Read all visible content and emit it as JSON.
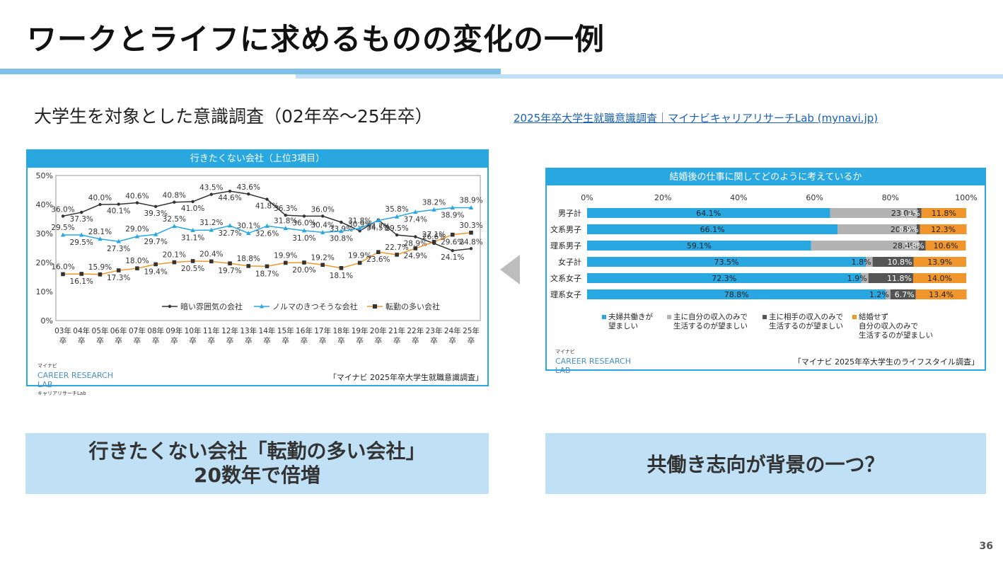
{
  "slide": {
    "title": "ワークとライフに求めるものの変化の一例",
    "subtitle": "大学生を対象とした意識調査（02年卒〜25年卒）",
    "source_link": "2025年卒大学生就職意識調査｜マイナビキャリアリサーチLab (mynavi.jp)",
    "callout_left_line1": "行きたくない会社「転勤の多い会社」",
    "callout_left_line2": "20数年で倍増",
    "callout_right": "共働き志向が背景の一つ？",
    "page_number": "36",
    "accent_color": "#29a7e1",
    "bar_color": "#7fc0e8",
    "callout_color": "#bfe0f5"
  },
  "logo": {
    "brand": "マイナビ",
    "line1": "CAREER RESEARCH",
    "line2": "LAB",
    "tagline": "キャリアリサーチLab"
  },
  "chart_data": [
    {
      "type": "line",
      "title": "行きたくない会社（上位3項目）",
      "source": "「マイナビ 2025年卒大学生就職意識調査」",
      "ylim": [
        0,
        50
      ],
      "yticks": [
        "0%",
        "10%",
        "20%",
        "30%",
        "40%",
        "50%"
      ],
      "categories": [
        "03年卒",
        "04年卒",
        "05年卒",
        "06年卒",
        "07年卒",
        "08年卒",
        "09年卒",
        "10年卒",
        "11年卒",
        "12年卒",
        "13年卒",
        "14年卒",
        "15年卒",
        "16年卒",
        "17年卒",
        "18年卒",
        "19年卒",
        "20年卒",
        "21年卒",
        "22年卒",
        "23年卒",
        "24年卒",
        "25年卒"
      ],
      "category_labels": [
        {
          "top": "03年",
          "bottom": "卒"
        },
        {
          "top": "04年",
          "bottom": "卒"
        },
        {
          "top": "05年",
          "bottom": "卒"
        },
        {
          "top": "06年",
          "bottom": "卒"
        },
        {
          "top": "07年",
          "bottom": "卒"
        },
        {
          "top": "08年",
          "bottom": "卒"
        },
        {
          "top": "09年",
          "bottom": "卒"
        },
        {
          "top": "10年",
          "bottom": "卒"
        },
        {
          "top": "11年",
          "bottom": "卒"
        },
        {
          "top": "12年",
          "bottom": "卒"
        },
        {
          "top": "13年",
          "bottom": "卒"
        },
        {
          "top": "14年",
          "bottom": "卒"
        },
        {
          "top": "15年",
          "bottom": "卒"
        },
        {
          "top": "16年",
          "bottom": "卒"
        },
        {
          "top": "17年",
          "bottom": "卒"
        },
        {
          "top": "18年",
          "bottom": "卒"
        },
        {
          "top": "19年",
          "bottom": "卒"
        },
        {
          "top": "20年",
          "bottom": "卒"
        },
        {
          "top": "21年",
          "bottom": "卒"
        },
        {
          "top": "22年",
          "bottom": "卒"
        },
        {
          "top": "23年",
          "bottom": "卒"
        },
        {
          "top": "24年",
          "bottom": "卒"
        },
        {
          "top": "25年",
          "bottom": "卒"
        }
      ],
      "series": [
        {
          "name": "暗い雰囲気の会社",
          "color": "#333333",
          "marker": "circle",
          "values": [
            36.0,
            37.3,
            40.0,
            40.1,
            40.6,
            39.3,
            40.8,
            41.0,
            43.5,
            44.6,
            43.6,
            41.8,
            36.3,
            36.0,
            36.0,
            33.9,
            30.9,
            34.7,
            29.5,
            28.9,
            26.6,
            24.1,
            24.8
          ]
        },
        {
          "name": "ノルマのきつそうな会社",
          "color": "#29a7e1",
          "marker": "triangle",
          "values": [
            29.5,
            29.5,
            28.1,
            27.3,
            29.0,
            29.7,
            32.5,
            31.1,
            31.2,
            32.7,
            30.1,
            32.6,
            31.8,
            31.0,
            30.4,
            30.8,
            31.8,
            34.5,
            35.8,
            37.4,
            38.2,
            38.9,
            38.9
          ]
        },
        {
          "name": "転勤の多い会社",
          "color": "#f0962d",
          "marker": "square",
          "values": [
            16.0,
            16.1,
            15.9,
            17.3,
            18.0,
            19.4,
            20.1,
            20.5,
            20.4,
            19.7,
            18.8,
            18.7,
            19.9,
            20.0,
            19.2,
            18.1,
            19.9,
            23.6,
            22.7,
            24.9,
            27.1,
            29.6,
            30.3
          ]
        }
      ],
      "legend_position": "bottom",
      "grid": false
    },
    {
      "type": "bar",
      "orientation": "horizontal-stacked",
      "title": "結婚後の仕事に関してどのように考えているか",
      "source": "「マイナビ 2025年卒大学生のライフスタイル調査」",
      "xlim": [
        0,
        100
      ],
      "xticks": [
        "0%",
        "20%",
        "40%",
        "60%",
        "80%",
        "100%"
      ],
      "categories": [
        "男子計",
        "文系男子",
        "理系男子",
        "女子計",
        "文系女子",
        "理系女子"
      ],
      "series": [
        {
          "name": "夫婦共働きが望ましい",
          "legend_lines": [
            "夫婦共働きが",
            "望ましい"
          ],
          "color": "#29a7e1",
          "values": [
            64.1,
            66.1,
            59.1,
            73.5,
            72.3,
            78.8
          ]
        },
        {
          "name": "主に自分の収入のみで生活するのが望ましい",
          "legend_lines": [
            "主に自分の収入のみで",
            "生活するのが望ましい"
          ],
          "color": "#b3b3b3",
          "values": [
            23.0,
            20.8,
            28.4,
            1.8,
            1.9,
            1.2
          ]
        },
        {
          "name": "主に相手の収入のみで生活するのが望ましい",
          "legend_lines": [
            "主に相手の収入のみで",
            "生活するのが望ましい"
          ],
          "color": "#555555",
          "values": [
            1.1,
            0.9,
            1.8,
            10.8,
            11.8,
            6.7
          ]
        },
        {
          "name": "結婚せず自分の収入のみで生活するのが望ましい",
          "legend_lines": [
            "結婚せず",
            "自分の収入のみで",
            "生活するのが望ましい"
          ],
          "color": "#f0962d",
          "values": [
            11.8,
            12.3,
            10.6,
            13.9,
            14.0,
            13.4
          ]
        }
      ],
      "legend_position": "bottom"
    }
  ]
}
